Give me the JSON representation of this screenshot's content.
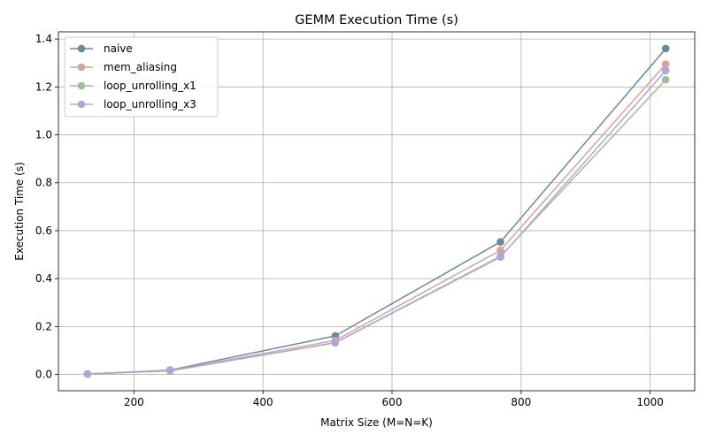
{
  "chart_data": {
    "type": "line",
    "title": "GEMM Execution Time (s)",
    "xlabel": "Matrix Size (M=N=K)",
    "ylabel": "Execution Time (s)",
    "x": [
      128,
      256,
      512,
      768,
      1024
    ],
    "xlim": [
      83,
      1069
    ],
    "ylim": [
      -0.068,
      1.43
    ],
    "xticks": [
      200,
      400,
      600,
      800,
      1000
    ],
    "yticks": [
      0.0,
      0.2,
      0.4,
      0.6,
      0.8,
      1.0,
      1.2,
      1.4
    ],
    "grid": true,
    "legend_position": "top-left",
    "series": [
      {
        "name": "naive",
        "color": "#688a9c",
        "values": [
          0.002,
          0.018,
          0.161,
          0.553,
          1.36
        ]
      },
      {
        "name": "mem_aliasing",
        "color": "#d3a59c",
        "values": [
          0.002,
          0.016,
          0.142,
          0.518,
          1.295
        ]
      },
      {
        "name": "loop_unrolling_x1",
        "color": "#9dbf98",
        "values": [
          0.002,
          0.015,
          0.133,
          0.493,
          1.23
        ]
      },
      {
        "name": "loop_unrolling_x3",
        "color": "#b3a3d8",
        "values": [
          0.002,
          0.015,
          0.132,
          0.49,
          1.268
        ]
      }
    ]
  }
}
